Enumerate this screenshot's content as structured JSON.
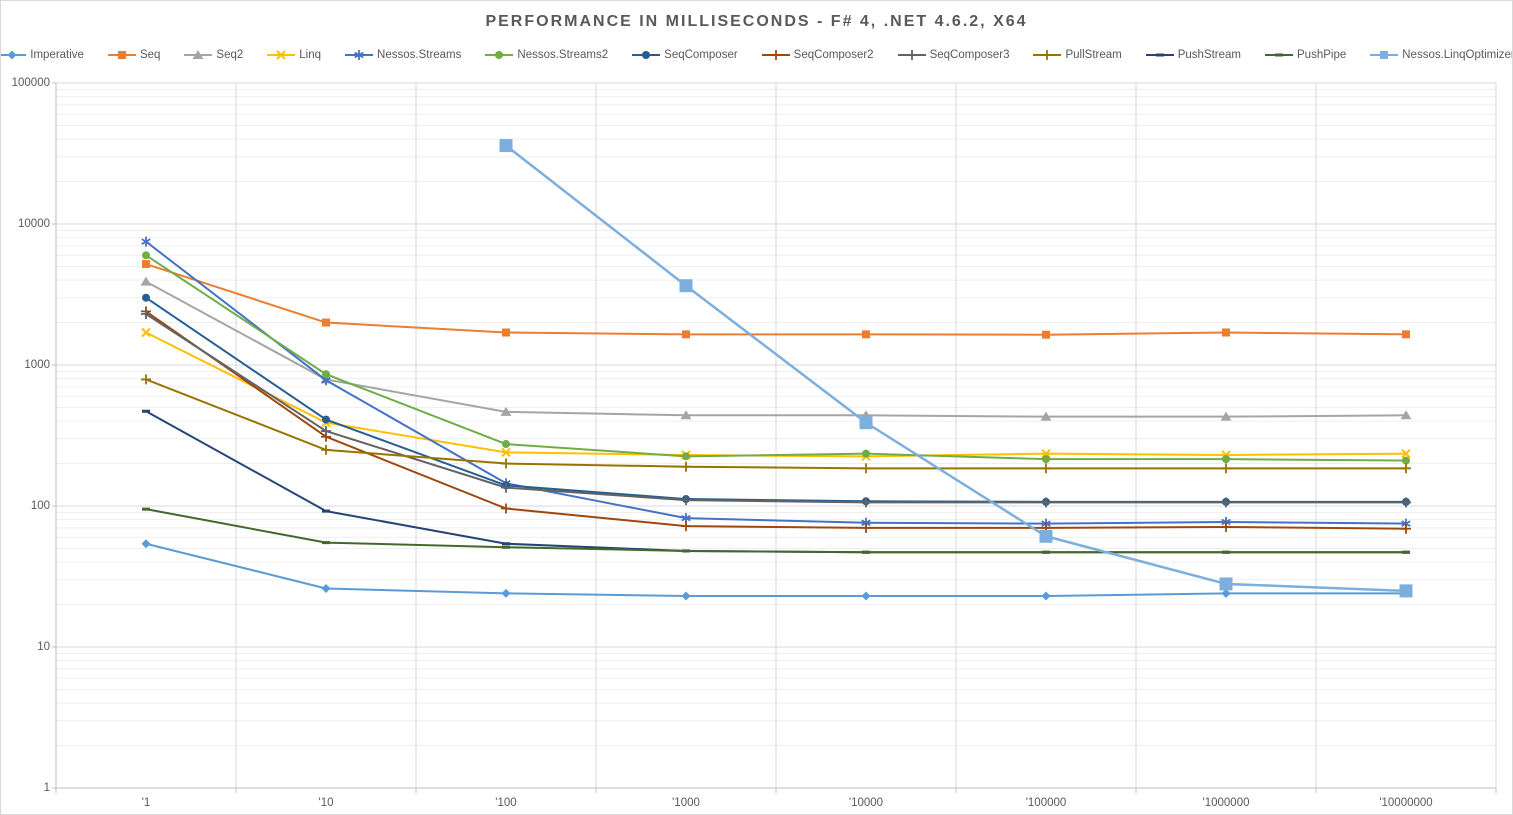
{
  "window": {
    "background": "#FFFFFF",
    "border_color": "#D9D9D9"
  },
  "title": {
    "text": "PERFORMANCE IN MILLISECONDS - F# 4, .NET 4.6.2, X64",
    "color": "#595959"
  },
  "axis_colors": {
    "label": "#595959",
    "major_grid": "#D9D9D9",
    "minor_grid": "#EFEFEF",
    "axis_line": "#BFBFBF"
  },
  "chart_data": {
    "type": "line",
    "title": "PERFORMANCE IN MILLISECONDS - F# 4, .NET 4.6.2, X64",
    "x_scale": "category",
    "y_scale": "log",
    "ylim": [
      1,
      100000
    ],
    "y_ticks": [
      1,
      10,
      100,
      1000,
      10000,
      100000
    ],
    "grid": "major-and-minor-horizontal, vertical-category-boundaries",
    "legend_position": "top",
    "categories": [
      "'1",
      "'10",
      "'100",
      "'1000",
      "'10000",
      "'100000",
      "'1000000",
      "'10000000"
    ],
    "series": [
      {
        "name": "Imperative",
        "color": "#5B9BD5",
        "marker": "diamond",
        "values": [
          54,
          26,
          24,
          23,
          23,
          23,
          24,
          24
        ]
      },
      {
        "name": "Seq",
        "color": "#ED7D31",
        "marker": "square",
        "values": [
          5200,
          2000,
          1700,
          1650,
          1650,
          1640,
          1700,
          1650
        ]
      },
      {
        "name": "Seq2",
        "color": "#A5A5A5",
        "marker": "triangle",
        "values": [
          3900,
          790,
          465,
          440,
          440,
          430,
          430,
          440
        ]
      },
      {
        "name": "Linq",
        "color": "#FFC000",
        "marker": "x",
        "values": [
          1700,
          390,
          240,
          230,
          225,
          235,
          230,
          235
        ]
      },
      {
        "name": "Nessos.Streams",
        "color": "#4472C4",
        "marker": "asterisk",
        "values": [
          7500,
          780,
          145,
          82,
          76,
          75,
          77,
          75
        ]
      },
      {
        "name": "Nessos.Streams2",
        "color": "#70AD47",
        "marker": "circle",
        "values": [
          6000,
          860,
          275,
          225,
          235,
          215,
          215,
          210
        ]
      },
      {
        "name": "SeqComposer",
        "color": "#255E91",
        "marker": "circle",
        "values": [
          3000,
          410,
          140,
          112,
          108,
          107,
          107,
          107
        ]
      },
      {
        "name": "SeqComposer2",
        "color": "#9E480E",
        "marker": "plus",
        "values": [
          2400,
          310,
          96,
          72,
          70,
          70,
          71,
          69
        ]
      },
      {
        "name": "SeqComposer3",
        "color": "#636363",
        "marker": "plus",
        "values": [
          2300,
          340,
          135,
          110,
          106,
          106,
          106,
          106
        ]
      },
      {
        "name": "PullStream",
        "color": "#997300",
        "marker": "plus",
        "values": [
          790,
          250,
          200,
          190,
          185,
          185,
          185,
          185
        ]
      },
      {
        "name": "PushStream",
        "color": "#264478",
        "marker": "dash",
        "values": [
          470,
          92,
          54,
          48,
          47,
          47,
          47,
          47
        ]
      },
      {
        "name": "PushPipe",
        "color": "#43682B",
        "marker": "dash",
        "values": [
          95,
          55,
          51,
          48,
          47,
          47,
          47,
          47
        ]
      },
      {
        "name": "Nessos.LinqOptimizer",
        "color": "#7CAFDD",
        "marker": "square-lg",
        "values": [
          null,
          null,
          36000,
          3650,
          390,
          61,
          28,
          25
        ]
      }
    ]
  }
}
